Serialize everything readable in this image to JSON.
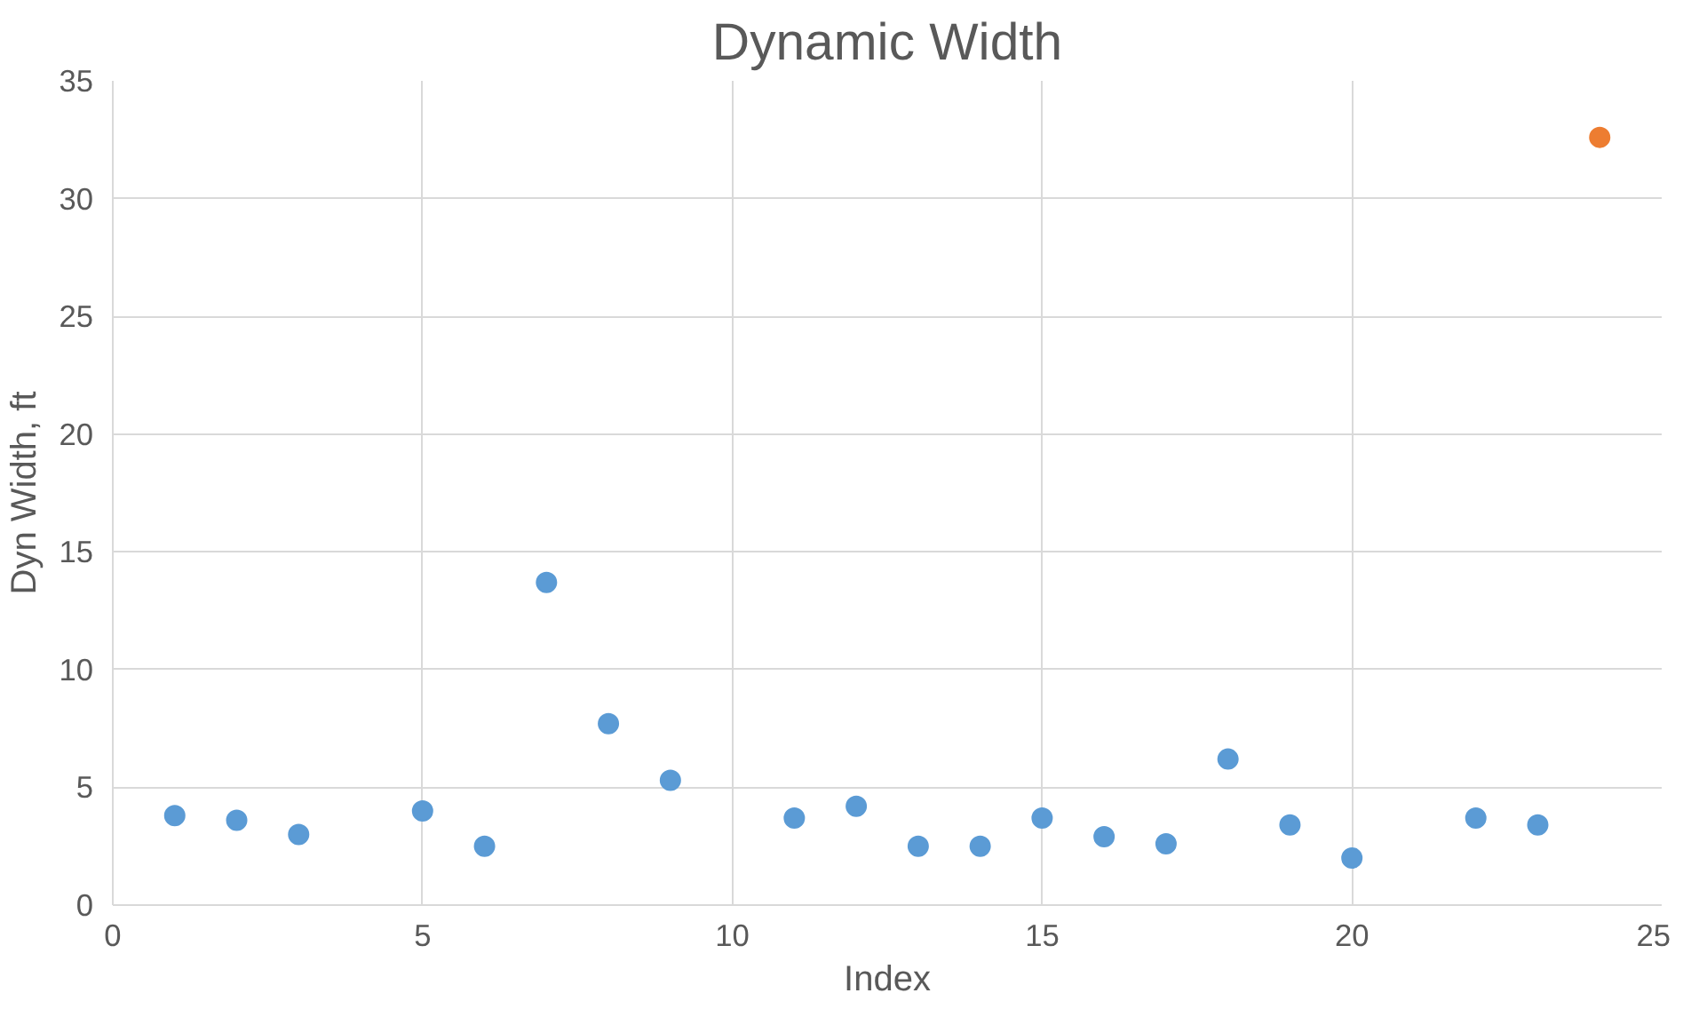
{
  "chart_data": {
    "type": "scatter",
    "title": "Dynamic Width",
    "xlabel": "Index",
    "ylabel": "Dyn Width, ft",
    "series": [
      {
        "color": "#5b9bd5",
        "x": [
          1,
          2,
          3,
          5,
          6,
          7,
          8,
          9,
          11,
          12,
          13,
          14,
          15,
          16,
          17,
          18,
          19,
          20,
          22,
          23
        ],
        "values": [
          3.8,
          3.6,
          3.0,
          4.0,
          2.5,
          13.7,
          7.7,
          5.3,
          3.7,
          4.2,
          2.5,
          2.5,
          3.7,
          2.9,
          2.6,
          6.2,
          3.4,
          2.0,
          3.7,
          3.4
        ]
      },
      {
        "color": "#ed7d31",
        "x": [
          24
        ],
        "values": [
          32.6
        ]
      }
    ],
    "xlim": [
      0,
      25
    ],
    "xticks": [
      0,
      5,
      10,
      15,
      20,
      25
    ],
    "ylim": [
      0,
      35
    ],
    "yticks": [
      0,
      5,
      10,
      15,
      20,
      25,
      30,
      35
    ],
    "grid": true,
    "marker": "circle"
  }
}
